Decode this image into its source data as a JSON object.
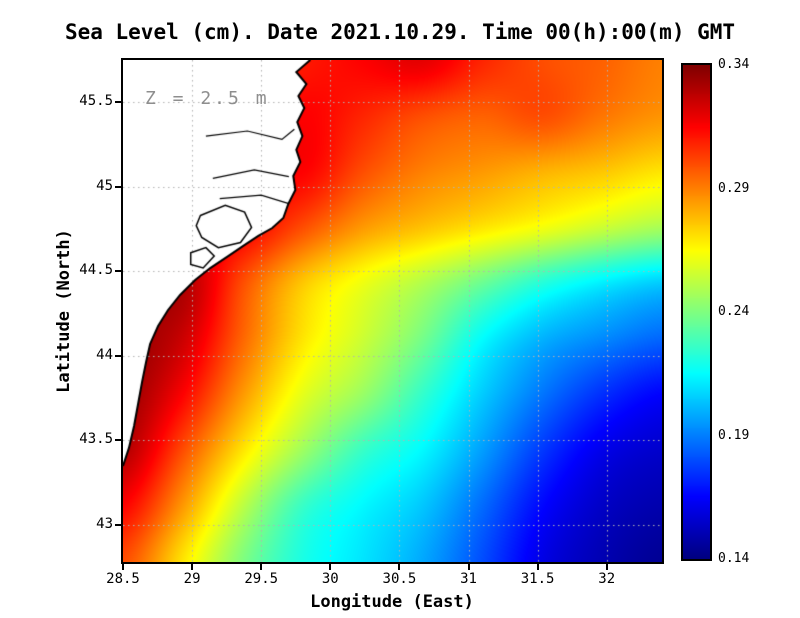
{
  "chart_data": {
    "type": "heatmap",
    "title": "Sea Level (cm). Date 2021.10.29. Time 00(h):00(m) GMT",
    "annotation": "Z = 2.5 m",
    "xlabel": "Longitude (East)",
    "ylabel": "Latitude (North)",
    "colormap": "jet",
    "vmin": 0.14,
    "vmax": 0.34,
    "colorbar_ticks": [
      0.34,
      0.29,
      0.24,
      0.19,
      0.14
    ],
    "lon_range": [
      28.5,
      32.4
    ],
    "lat_range": [
      42.78,
      45.75
    ],
    "x_ticks": [
      28.5,
      29,
      29.5,
      30,
      30.5,
      31,
      31.5,
      32
    ],
    "y_ticks": [
      45.5,
      45,
      44.5,
      44,
      43.5,
      43
    ],
    "grid": {
      "lons": [
        28.5,
        28.93,
        29.37,
        29.8,
        30.23,
        30.67,
        31.1,
        31.53,
        31.97,
        32.4
      ],
      "lats": [
        45.75,
        45.42,
        45.09,
        44.76,
        44.43,
        44.1,
        43.77,
        43.44,
        43.11,
        42.78
      ],
      "values": [
        [
          0.3,
          0.3,
          0.305,
          0.31,
          0.315,
          0.32,
          0.308,
          0.3,
          0.296,
          0.29
        ],
        [
          0.3,
          0.302,
          0.306,
          0.315,
          0.308,
          0.3,
          0.296,
          0.3,
          0.292,
          0.286
        ],
        [
          0.302,
          0.305,
          0.31,
          0.315,
          0.3,
          0.29,
          0.285,
          0.28,
          0.276,
          0.27
        ],
        [
          0.31,
          0.315,
          0.315,
          0.3,
          0.285,
          0.277,
          0.27,
          0.263,
          0.255,
          0.248
        ],
        [
          0.325,
          0.33,
          0.3,
          0.276,
          0.262,
          0.25,
          0.236,
          0.222,
          0.212,
          0.205
        ],
        [
          0.335,
          0.325,
          0.295,
          0.27,
          0.255,
          0.238,
          0.215,
          0.2,
          0.192,
          0.185
        ],
        [
          0.335,
          0.315,
          0.285,
          0.26,
          0.245,
          0.225,
          0.205,
          0.188,
          0.174,
          0.165
        ],
        [
          0.33,
          0.3,
          0.27,
          0.246,
          0.226,
          0.214,
          0.196,
          0.176,
          0.161,
          0.155
        ],
        [
          0.315,
          0.285,
          0.252,
          0.226,
          0.214,
          0.204,
          0.186,
          0.166,
          0.154,
          0.149
        ],
        [
          0.3,
          0.27,
          0.24,
          0.22,
          0.21,
          0.198,
          0.18,
          0.16,
          0.15,
          0.144
        ]
      ]
    },
    "coastline": [
      [
        29.855,
        45.75
      ],
      [
        29.754,
        45.679
      ],
      [
        29.827,
        45.608
      ],
      [
        29.769,
        45.537
      ],
      [
        29.812,
        45.466
      ],
      [
        29.761,
        45.383
      ],
      [
        29.798,
        45.3
      ],
      [
        29.754,
        45.218
      ],
      [
        29.783,
        45.147
      ],
      [
        29.732,
        45.064
      ],
      [
        29.747,
        44.981
      ],
      [
        29.696,
        44.898
      ],
      [
        29.66,
        44.815
      ],
      [
        29.58,
        44.756
      ],
      [
        29.479,
        44.709
      ],
      [
        29.37,
        44.65
      ],
      [
        29.261,
        44.59
      ],
      [
        29.131,
        44.519
      ],
      [
        29.022,
        44.448
      ],
      [
        28.913,
        44.36
      ],
      [
        28.826,
        44.271
      ],
      [
        28.754,
        44.176
      ],
      [
        28.696,
        44.07
      ],
      [
        28.667,
        43.963
      ],
      [
        28.638,
        43.845
      ],
      [
        28.609,
        43.715
      ],
      [
        28.58,
        43.585
      ],
      [
        28.543,
        43.455
      ],
      [
        28.5,
        43.348
      ]
    ],
    "lakes": [
      [
        [
          29.06,
          44.83
        ],
        [
          29.24,
          44.89
        ],
        [
          29.38,
          44.85
        ],
        [
          29.43,
          44.76
        ],
        [
          29.35,
          44.67
        ],
        [
          29.19,
          44.64
        ],
        [
          29.07,
          44.7
        ],
        [
          29.03,
          44.77
        ]
      ],
      [
        [
          28.99,
          44.61
        ],
        [
          29.1,
          44.64
        ],
        [
          29.16,
          44.59
        ],
        [
          29.08,
          44.52
        ],
        [
          28.99,
          44.54
        ]
      ]
    ],
    "rivers": [
      [
        [
          29.1,
          45.3
        ],
        [
          29.4,
          45.33
        ],
        [
          29.65,
          45.28
        ],
        [
          29.74,
          45.34
        ]
      ],
      [
        [
          29.15,
          45.05
        ],
        [
          29.45,
          45.1
        ],
        [
          29.7,
          45.06
        ]
      ],
      [
        [
          29.2,
          44.93
        ],
        [
          29.5,
          44.95
        ],
        [
          29.7,
          44.9
        ]
      ]
    ]
  }
}
